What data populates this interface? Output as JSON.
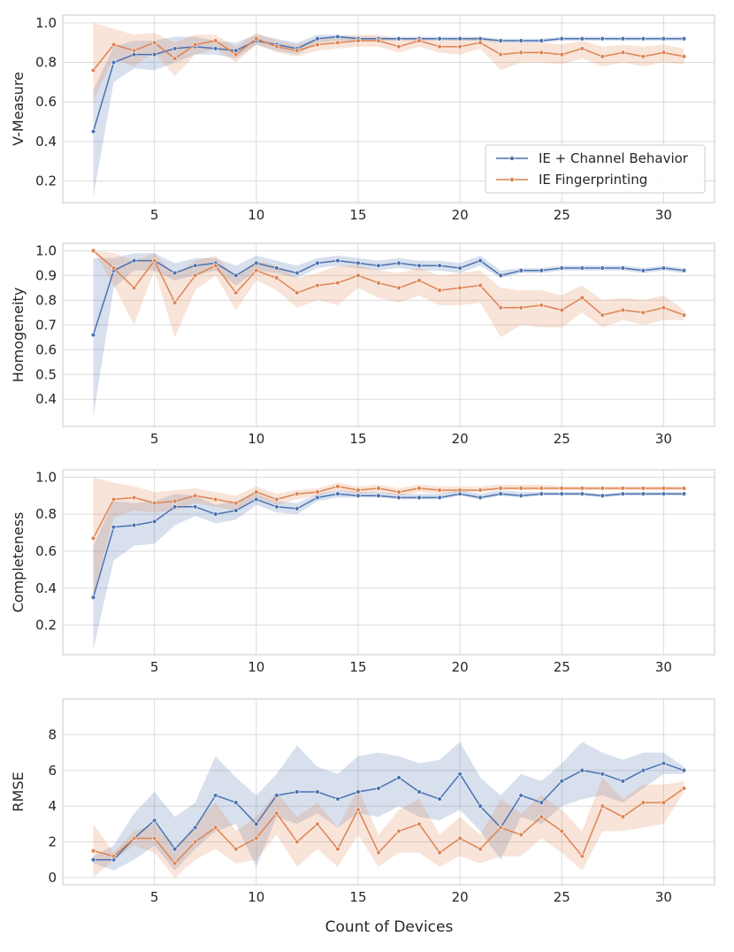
{
  "figure": {
    "xlabel": "Count of Devices",
    "xticks": [
      5,
      10,
      15,
      20,
      25,
      30
    ],
    "colors": {
      "channel": "#4c72b0",
      "fingerprint": "#dd8452",
      "grid": "#dcdcdc",
      "axis": "#c8c8c8"
    }
  },
  "legend": {
    "position": "lower-right of first panel",
    "entries": [
      "IE + Channel Behavior",
      "IE Fingerprinting"
    ]
  },
  "chart_data": [
    {
      "type": "line",
      "ylabel": "V-Measure",
      "xlim": [
        0.5,
        32.5
      ],
      "ylim": [
        0.09,
        1.04
      ],
      "yticks": [
        0.2,
        0.4,
        0.6,
        0.8,
        1.0
      ],
      "ytick_labels": [
        "0.2",
        "0.4",
        "0.6",
        "0.8",
        "1.0"
      ],
      "x": [
        2,
        3,
        4,
        5,
        6,
        7,
        8,
        9,
        10,
        11,
        12,
        13,
        14,
        15,
        16,
        17,
        18,
        19,
        20,
        21,
        22,
        23,
        24,
        25,
        26,
        27,
        28,
        29,
        30,
        31
      ],
      "series": [
        {
          "name": "IE + Channel Behavior",
          "values": [
            0.45,
            0.8,
            0.84,
            0.84,
            0.87,
            0.88,
            0.87,
            0.86,
            0.91,
            0.89,
            0.87,
            0.92,
            0.93,
            0.92,
            0.92,
            0.92,
            0.92,
            0.92,
            0.92,
            0.92,
            0.91,
            0.91,
            0.91,
            0.92,
            0.92,
            0.92,
            0.92,
            0.92,
            0.92,
            0.92
          ],
          "ci_low": [
            0.12,
            0.7,
            0.77,
            0.76,
            0.8,
            0.84,
            0.84,
            0.82,
            0.89,
            0.86,
            0.84,
            0.9,
            0.91,
            0.91,
            0.91,
            0.91,
            0.91,
            0.91,
            0.91,
            0.91,
            0.9,
            0.9,
            0.9,
            0.91,
            0.91,
            0.91,
            0.91,
            0.91,
            0.91,
            0.91
          ],
          "ci_high": [
            0.66,
            0.88,
            0.91,
            0.91,
            0.93,
            0.93,
            0.91,
            0.9,
            0.94,
            0.92,
            0.9,
            0.94,
            0.94,
            0.93,
            0.93,
            0.93,
            0.93,
            0.93,
            0.93,
            0.93,
            0.92,
            0.92,
            0.92,
            0.93,
            0.93,
            0.93,
            0.93,
            0.93,
            0.93,
            0.93
          ]
        },
        {
          "name": "IE Fingerprinting",
          "values": [
            0.76,
            0.89,
            0.86,
            0.9,
            0.82,
            0.89,
            0.91,
            0.84,
            0.92,
            0.88,
            0.86,
            0.89,
            0.9,
            0.91,
            0.91,
            0.88,
            0.91,
            0.88,
            0.88,
            0.9,
            0.84,
            0.85,
            0.85,
            0.84,
            0.87,
            0.83,
            0.85,
            0.83,
            0.85,
            0.83
          ],
          "ci_low": [
            0.61,
            0.82,
            0.78,
            0.85,
            0.73,
            0.84,
            0.87,
            0.8,
            0.89,
            0.85,
            0.83,
            0.86,
            0.87,
            0.88,
            0.88,
            0.85,
            0.88,
            0.85,
            0.84,
            0.87,
            0.76,
            0.8,
            0.8,
            0.79,
            0.82,
            0.78,
            0.8,
            0.78,
            0.8,
            0.79
          ],
          "ci_high": [
            1.0,
            0.97,
            0.94,
            0.95,
            0.9,
            0.94,
            0.94,
            0.88,
            0.95,
            0.91,
            0.89,
            0.92,
            0.93,
            0.94,
            0.94,
            0.91,
            0.93,
            0.91,
            0.92,
            0.93,
            0.9,
            0.9,
            0.9,
            0.89,
            0.91,
            0.88,
            0.89,
            0.88,
            0.89,
            0.87
          ]
        }
      ]
    },
    {
      "type": "line",
      "ylabel": "Homogeneity",
      "xlim": [
        0.5,
        32.5
      ],
      "ylim": [
        0.29,
        1.03
      ],
      "yticks": [
        0.4,
        0.5,
        0.6,
        0.7,
        0.8,
        0.9,
        1.0
      ],
      "ytick_labels": [
        "0.4",
        "0.5",
        "0.6",
        "0.7",
        "0.8",
        "0.9",
        "1.0"
      ],
      "x": [
        2,
        3,
        4,
        5,
        6,
        7,
        8,
        9,
        10,
        11,
        12,
        13,
        14,
        15,
        16,
        17,
        18,
        19,
        20,
        21,
        22,
        23,
        24,
        25,
        26,
        27,
        28,
        29,
        30,
        31
      ],
      "series": [
        {
          "name": "IE + Channel Behavior",
          "values": [
            0.66,
            0.92,
            0.96,
            0.96,
            0.91,
            0.94,
            0.95,
            0.9,
            0.95,
            0.93,
            0.91,
            0.95,
            0.96,
            0.95,
            0.94,
            0.95,
            0.94,
            0.94,
            0.93,
            0.96,
            0.9,
            0.92,
            0.92,
            0.93,
            0.93,
            0.93,
            0.93,
            0.92,
            0.93,
            0.92
          ],
          "ci_low": [
            0.33,
            0.85,
            0.92,
            0.92,
            0.88,
            0.9,
            0.92,
            0.86,
            0.92,
            0.91,
            0.89,
            0.93,
            0.94,
            0.93,
            0.92,
            0.93,
            0.92,
            0.92,
            0.91,
            0.94,
            0.89,
            0.91,
            0.91,
            0.92,
            0.92,
            0.92,
            0.92,
            0.91,
            0.92,
            0.91
          ],
          "ci_high": [
            0.97,
            0.97,
            0.99,
            0.99,
            0.95,
            0.97,
            0.97,
            0.94,
            0.98,
            0.96,
            0.94,
            0.97,
            0.98,
            0.97,
            0.96,
            0.97,
            0.96,
            0.96,
            0.95,
            0.98,
            0.92,
            0.93,
            0.93,
            0.94,
            0.94,
            0.94,
            0.94,
            0.93,
            0.94,
            0.93
          ]
        },
        {
          "name": "IE Fingerprinting",
          "values": [
            1.0,
            0.93,
            0.85,
            0.96,
            0.79,
            0.9,
            0.94,
            0.83,
            0.92,
            0.89,
            0.83,
            0.86,
            0.87,
            0.9,
            0.87,
            0.85,
            0.88,
            0.84,
            0.85,
            0.86,
            0.77,
            0.77,
            0.78,
            0.76,
            0.81,
            0.74,
            0.76,
            0.75,
            0.77,
            0.74
          ],
          "ci_low": [
            1.0,
            0.86,
            0.7,
            0.92,
            0.65,
            0.84,
            0.9,
            0.76,
            0.88,
            0.84,
            0.77,
            0.8,
            0.78,
            0.85,
            0.81,
            0.79,
            0.82,
            0.78,
            0.78,
            0.79,
            0.65,
            0.7,
            0.69,
            0.69,
            0.75,
            0.69,
            0.72,
            0.7,
            0.72,
            0.72
          ],
          "ci_high": [
            1.0,
            0.99,
            0.96,
            0.99,
            0.9,
            0.96,
            0.98,
            0.89,
            0.96,
            0.94,
            0.89,
            0.91,
            0.94,
            0.94,
            0.92,
            0.91,
            0.93,
            0.9,
            0.91,
            0.92,
            0.85,
            0.84,
            0.84,
            0.82,
            0.86,
            0.8,
            0.81,
            0.8,
            0.82,
            0.76
          ]
        }
      ]
    },
    {
      "type": "line",
      "ylabel": "Completeness",
      "xlim": [
        0.5,
        32.5
      ],
      "ylim": [
        0.04,
        1.04
      ],
      "yticks": [
        0.2,
        0.4,
        0.6,
        0.8,
        1.0
      ],
      "ytick_labels": [
        "0.2",
        "0.4",
        "0.6",
        "0.8",
        "1.0"
      ],
      "x": [
        2,
        3,
        4,
        5,
        6,
        7,
        8,
        9,
        10,
        11,
        12,
        13,
        14,
        15,
        16,
        17,
        18,
        19,
        20,
        21,
        22,
        23,
        24,
        25,
        26,
        27,
        28,
        29,
        30,
        31
      ],
      "series": [
        {
          "name": "IE + Channel Behavior",
          "values": [
            0.35,
            0.73,
            0.74,
            0.76,
            0.84,
            0.84,
            0.8,
            0.82,
            0.88,
            0.84,
            0.83,
            0.89,
            0.91,
            0.9,
            0.9,
            0.89,
            0.89,
            0.89,
            0.91,
            0.89,
            0.91,
            0.9,
            0.91,
            0.91,
            0.91,
            0.9,
            0.91,
            0.91,
            0.91,
            0.91
          ],
          "ci_low": [
            0.07,
            0.55,
            0.63,
            0.64,
            0.74,
            0.79,
            0.75,
            0.77,
            0.85,
            0.81,
            0.8,
            0.87,
            0.89,
            0.89,
            0.89,
            0.88,
            0.88,
            0.88,
            0.9,
            0.88,
            0.9,
            0.89,
            0.9,
            0.9,
            0.9,
            0.89,
            0.9,
            0.9,
            0.9,
            0.9
          ],
          "ci_high": [
            0.63,
            0.87,
            0.86,
            0.87,
            0.91,
            0.9,
            0.85,
            0.87,
            0.91,
            0.87,
            0.86,
            0.91,
            0.93,
            0.92,
            0.92,
            0.91,
            0.91,
            0.91,
            0.93,
            0.91,
            0.93,
            0.92,
            0.92,
            0.92,
            0.92,
            0.91,
            0.92,
            0.92,
            0.92,
            0.92
          ]
        },
        {
          "name": "IE Fingerprinting",
          "values": [
            0.67,
            0.88,
            0.89,
            0.86,
            0.87,
            0.9,
            0.88,
            0.86,
            0.92,
            0.88,
            0.91,
            0.92,
            0.95,
            0.93,
            0.94,
            0.92,
            0.94,
            0.93,
            0.93,
            0.93,
            0.94,
            0.94,
            0.94,
            0.94,
            0.94,
            0.94,
            0.94,
            0.94,
            0.94,
            0.94
          ],
          "ci_low": [
            0.36,
            0.78,
            0.82,
            0.81,
            0.82,
            0.86,
            0.84,
            0.82,
            0.89,
            0.85,
            0.88,
            0.9,
            0.93,
            0.91,
            0.92,
            0.9,
            0.92,
            0.91,
            0.92,
            0.92,
            0.93,
            0.93,
            0.93,
            0.93,
            0.93,
            0.93,
            0.93,
            0.93,
            0.93,
            0.93
          ],
          "ci_high": [
            1.0,
            0.97,
            0.95,
            0.92,
            0.93,
            0.94,
            0.92,
            0.9,
            0.95,
            0.91,
            0.93,
            0.94,
            0.97,
            0.95,
            0.96,
            0.94,
            0.96,
            0.95,
            0.95,
            0.95,
            0.96,
            0.96,
            0.96,
            0.95,
            0.95,
            0.95,
            0.95,
            0.95,
            0.95,
            0.95
          ]
        }
      ]
    },
    {
      "type": "line",
      "ylabel": "RMSE",
      "xlim": [
        0.5,
        32.5
      ],
      "ylim": [
        -0.4,
        10.0
      ],
      "yticks": [
        0,
        2,
        4,
        6,
        8
      ],
      "ytick_labels": [
        "0",
        "2",
        "4",
        "6",
        "8"
      ],
      "x": [
        2,
        3,
        4,
        5,
        6,
        7,
        8,
        9,
        10,
        11,
        12,
        13,
        14,
        15,
        16,
        17,
        18,
        19,
        20,
        21,
        22,
        23,
        24,
        25,
        26,
        27,
        28,
        29,
        30,
        31
      ],
      "series": [
        {
          "name": "IE + Channel Behavior",
          "values": [
            1.0,
            1.0,
            2.2,
            3.2,
            1.6,
            2.8,
            4.6,
            4.2,
            3.0,
            4.6,
            4.8,
            4.8,
            4.4,
            4.8,
            5.0,
            5.6,
            4.8,
            4.4,
            5.8,
            4.0,
            2.8,
            4.6,
            4.2,
            5.4,
            6.0,
            5.8,
            5.4,
            6.0,
            6.4,
            6.0
          ],
          "ci_low": [
            0.8,
            0.4,
            1.0,
            1.8,
            0.4,
            1.6,
            2.6,
            3.0,
            0.6,
            3.4,
            3.0,
            3.6,
            2.8,
            3.6,
            3.4,
            4.0,
            3.4,
            3.2,
            3.8,
            2.6,
            1.0,
            3.4,
            3.0,
            4.0,
            4.4,
            4.6,
            4.2,
            5.0,
            5.8,
            5.8
          ],
          "ci_high": [
            1.2,
            1.8,
            3.6,
            4.8,
            3.4,
            4.2,
            6.8,
            5.6,
            4.6,
            5.8,
            7.4,
            6.2,
            5.8,
            6.8,
            7.0,
            6.8,
            6.4,
            6.6,
            7.6,
            5.6,
            4.6,
            5.8,
            5.4,
            6.4,
            7.6,
            7.0,
            6.6,
            7.0,
            7.0,
            6.2
          ]
        },
        {
          "name": "IE Fingerprinting",
          "values": [
            1.5,
            1.2,
            2.2,
            2.2,
            0.8,
            2.0,
            2.8,
            1.6,
            2.2,
            3.6,
            2.0,
            3.0,
            1.6,
            3.8,
            1.4,
            2.6,
            3.0,
            1.4,
            2.2,
            1.6,
            2.8,
            2.4,
            3.4,
            2.6,
            1.2,
            4.0,
            3.4,
            4.2,
            4.2,
            5.0
          ],
          "ci_low": [
            0.0,
            1.0,
            1.8,
            1.4,
            0.0,
            1.0,
            1.6,
            0.8,
            1.0,
            2.4,
            0.6,
            1.6,
            0.6,
            2.4,
            0.6,
            1.4,
            1.4,
            0.6,
            1.2,
            0.8,
            1.2,
            1.2,
            2.2,
            1.4,
            0.4,
            2.6,
            2.6,
            2.8,
            3.0,
            4.8
          ],
          "ci_high": [
            3.0,
            1.4,
            2.6,
            3.0,
            1.6,
            3.0,
            4.2,
            2.6,
            3.4,
            4.8,
            3.4,
            4.2,
            2.8,
            5.0,
            2.4,
            3.8,
            4.4,
            2.4,
            3.4,
            2.4,
            4.4,
            3.6,
            4.6,
            3.8,
            2.6,
            5.6,
            4.4,
            5.2,
            5.2,
            5.4
          ]
        }
      ]
    }
  ]
}
